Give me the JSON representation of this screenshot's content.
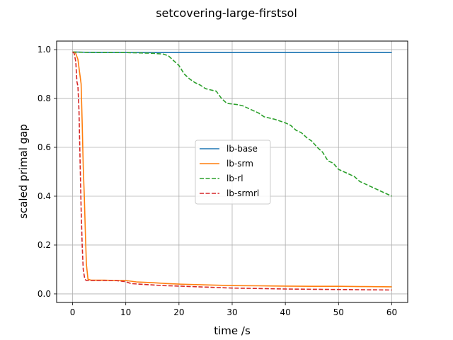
{
  "chart_data": {
    "type": "line",
    "title": "setcovering-large-firstsol",
    "xlabel": "time /s",
    "ylabel": "scaled primal gap",
    "xlim": [
      -3,
      63
    ],
    "ylim": [
      -0.035,
      1.035
    ],
    "xticks": [
      0,
      10,
      20,
      30,
      40,
      50,
      60
    ],
    "yticks": [
      0.0,
      0.2,
      0.4,
      0.6,
      0.8,
      1.0
    ],
    "xtick_labels": [
      "0",
      "10",
      "20",
      "30",
      "40",
      "50",
      "60"
    ],
    "ytick_labels": [
      "0.0",
      "0.2",
      "0.4",
      "0.6",
      "0.8",
      "1.0"
    ],
    "grid": true,
    "legend_position": "center",
    "series": [
      {
        "name": "lb-base",
        "color": "#1f77b4",
        "dash": "solid",
        "points": [
          [
            0,
            0.99
          ],
          [
            1,
            0.99
          ],
          [
            3,
            0.989
          ],
          [
            10,
            0.988
          ],
          [
            20,
            0.988
          ],
          [
            30,
            0.988
          ],
          [
            40,
            0.988
          ],
          [
            50,
            0.988
          ],
          [
            60,
            0.988
          ]
        ]
      },
      {
        "name": "lb-srm",
        "color": "#ff7f0e",
        "dash": "solid",
        "points": [
          [
            0,
            0.99
          ],
          [
            0.5,
            0.99
          ],
          [
            1.0,
            0.96
          ],
          [
            1.3,
            0.91
          ],
          [
            1.6,
            0.86
          ],
          [
            1.8,
            0.7
          ],
          [
            2.0,
            0.52
          ],
          [
            2.2,
            0.4
          ],
          [
            2.4,
            0.25
          ],
          [
            2.6,
            0.12
          ],
          [
            2.9,
            0.06
          ],
          [
            3.5,
            0.056
          ],
          [
            6,
            0.056
          ],
          [
            8,
            0.055
          ],
          [
            10,
            0.055
          ],
          [
            11,
            0.052
          ],
          [
            12,
            0.049
          ],
          [
            15,
            0.046
          ],
          [
            18,
            0.042
          ],
          [
            20,
            0.04
          ],
          [
            25,
            0.037
          ],
          [
            30,
            0.034
          ],
          [
            35,
            0.033
          ],
          [
            40,
            0.032
          ],
          [
            45,
            0.031
          ],
          [
            50,
            0.031
          ],
          [
            55,
            0.03
          ],
          [
            60,
            0.029
          ]
        ]
      },
      {
        "name": "lb-rl",
        "color": "#2ca02c",
        "dash": "dashed",
        "points": [
          [
            0,
            0.99
          ],
          [
            5,
            0.988
          ],
          [
            10,
            0.988
          ],
          [
            15,
            0.985
          ],
          [
            17,
            0.982
          ],
          [
            18,
            0.975
          ],
          [
            19,
            0.955
          ],
          [
            20,
            0.935
          ],
          [
            21,
            0.9
          ],
          [
            22,
            0.88
          ],
          [
            23,
            0.865
          ],
          [
            24,
            0.855
          ],
          [
            25,
            0.84
          ],
          [
            26,
            0.835
          ],
          [
            27,
            0.83
          ],
          [
            28,
            0.8
          ],
          [
            29,
            0.78
          ],
          [
            31,
            0.775
          ],
          [
            32,
            0.77
          ],
          [
            33,
            0.76
          ],
          [
            34,
            0.75
          ],
          [
            35,
            0.74
          ],
          [
            36,
            0.725
          ],
          [
            38,
            0.715
          ],
          [
            40,
            0.7
          ],
          [
            41,
            0.69
          ],
          [
            42,
            0.67
          ],
          [
            43,
            0.66
          ],
          [
            44,
            0.64
          ],
          [
            45,
            0.625
          ],
          [
            46,
            0.6
          ],
          [
            47,
            0.58
          ],
          [
            48,
            0.545
          ],
          [
            49,
            0.535
          ],
          [
            50,
            0.51
          ],
          [
            51,
            0.5
          ],
          [
            52,
            0.49
          ],
          [
            53,
            0.48
          ],
          [
            54,
            0.46
          ],
          [
            55,
            0.45
          ],
          [
            56,
            0.44
          ],
          [
            57,
            0.43
          ],
          [
            58,
            0.42
          ],
          [
            59,
            0.41
          ],
          [
            60,
            0.4
          ]
        ]
      },
      {
        "name": "lb-srmrl",
        "color": "#d62728",
        "dash": "dashed",
        "points": [
          [
            0,
            0.99
          ],
          [
            0.3,
            0.985
          ],
          [
            0.6,
            0.95
          ],
          [
            0.8,
            0.87
          ],
          [
            1.0,
            0.85
          ],
          [
            1.2,
            0.75
          ],
          [
            1.4,
            0.55
          ],
          [
            1.6,
            0.35
          ],
          [
            1.8,
            0.2
          ],
          [
            2.0,
            0.1
          ],
          [
            2.3,
            0.06
          ],
          [
            2.6,
            0.055
          ],
          [
            5,
            0.055
          ],
          [
            8,
            0.055
          ],
          [
            10,
            0.05
          ],
          [
            11,
            0.042
          ],
          [
            14,
            0.038
          ],
          [
            17,
            0.034
          ],
          [
            20,
            0.032
          ],
          [
            25,
            0.028
          ],
          [
            30,
            0.024
          ],
          [
            35,
            0.022
          ],
          [
            40,
            0.02
          ],
          [
            45,
            0.019
          ],
          [
            50,
            0.018
          ],
          [
            55,
            0.017
          ],
          [
            60,
            0.016
          ]
        ]
      }
    ]
  }
}
